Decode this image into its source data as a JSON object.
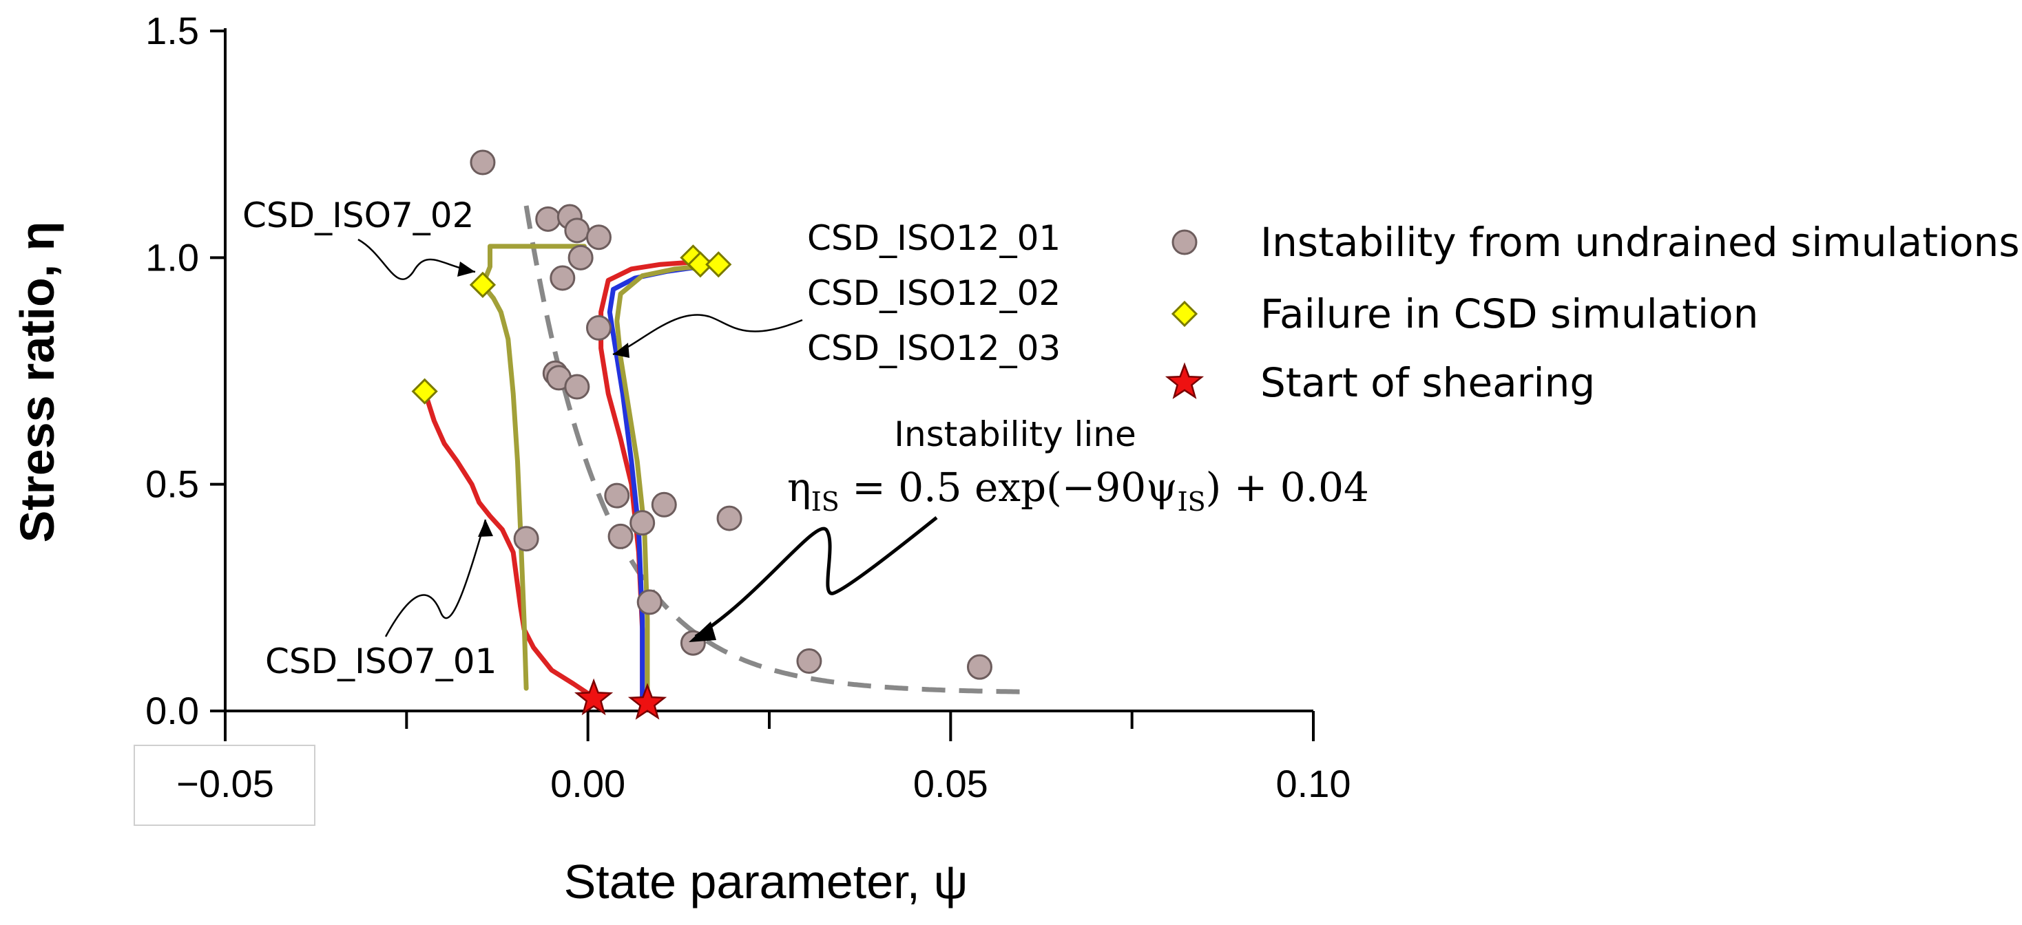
{
  "chart_data": {
    "type": "scatter",
    "xlabel": "State parameter, ψ",
    "ylabel": "Stress ratio, η",
    "xlim": [
      -0.05,
      0.1
    ],
    "ylim": [
      0.0,
      1.5
    ],
    "x_major_ticks": [
      -0.05,
      0.0,
      0.05,
      0.1
    ],
    "x_tick_labels": [
      "−0.05",
      "0.00",
      "0.05",
      "0.10"
    ],
    "x_minor_ticks": [
      -0.025,
      0.025,
      0.075
    ],
    "y_ticks": [
      0.0,
      0.5,
      1.0,
      1.5
    ],
    "y_tick_labels": [
      "0.0",
      "0.5",
      "1.0",
      "1.5"
    ],
    "legend_position": "right",
    "legend": [
      {
        "label": "Instability from undrained simulations",
        "marker": "circle",
        "color": "#bba6a6"
      },
      {
        "label": "Failure in CSD simulation",
        "marker": "diamond",
        "color": "#ffff00"
      },
      {
        "label": "Start of shearing",
        "marker": "star",
        "color": "#dd0000"
      }
    ],
    "instability_points": [
      [
        -0.0145,
        1.21
      ],
      [
        -0.0055,
        1.085
      ],
      [
        -0.0025,
        1.09
      ],
      [
        -0.0015,
        1.06
      ],
      [
        0.0015,
        1.045
      ],
      [
        -0.001,
        1.0
      ],
      [
        -0.0035,
        0.955
      ],
      [
        0.0015,
        0.845
      ],
      [
        -0.0045,
        0.745
      ],
      [
        -0.004,
        0.735
      ],
      [
        -0.0015,
        0.715
      ],
      [
        0.004,
        0.475
      ],
      [
        0.0105,
        0.455
      ],
      [
        0.0195,
        0.425
      ],
      [
        0.0075,
        0.415
      ],
      [
        0.0045,
        0.385
      ],
      [
        -0.0085,
        0.38
      ],
      [
        0.0085,
        0.24
      ],
      [
        0.0145,
        0.15
      ],
      [
        0.0305,
        0.11
      ],
      [
        0.054,
        0.097
      ]
    ],
    "failure_points": [
      [
        -0.0225,
        0.705
      ],
      [
        -0.0145,
        0.94
      ],
      [
        0.0145,
        1.0
      ],
      [
        0.0155,
        0.985
      ],
      [
        0.018,
        0.985
      ]
    ],
    "start_points": [
      [
        0.0008,
        0.027
      ],
      [
        0.0082,
        0.017
      ]
    ],
    "instability_line": {
      "equation": "η_IS = 0.5 exp(−90ψ_IS) + 0.04",
      "label": "Instability line",
      "equation_main": "η",
      "equation_sub1": "IS",
      "equation_mid": " = 0.5 exp(−90ψ",
      "equation_sub2": "IS",
      "equation_end": ") + 0.04",
      "x_start": -0.0085,
      "x_end": 0.06,
      "color": "#888888"
    },
    "series": [
      {
        "name": "CSD_ISO7_01",
        "color": "#dd2222",
        "points": [
          [
            0.0008,
            0.03
          ],
          [
            -0.002,
            0.06
          ],
          [
            -0.005,
            0.09
          ],
          [
            -0.0075,
            0.14
          ],
          [
            -0.0088,
            0.18
          ],
          [
            -0.0093,
            0.23
          ],
          [
            -0.0098,
            0.29
          ],
          [
            -0.0103,
            0.35
          ],
          [
            -0.0118,
            0.4
          ],
          [
            -0.0135,
            0.43
          ],
          [
            -0.015,
            0.46
          ],
          [
            -0.016,
            0.5
          ],
          [
            -0.018,
            0.55
          ],
          [
            -0.0198,
            0.59
          ],
          [
            -0.0212,
            0.64
          ],
          [
            -0.0225,
            0.705
          ]
        ]
      },
      {
        "name": "CSD_ISO7_02",
        "color": "#a2a038",
        "points": [
          [
            -0.0085,
            0.05
          ],
          [
            -0.0088,
            0.2
          ],
          [
            -0.0093,
            0.4
          ],
          [
            -0.0097,
            0.55
          ],
          [
            -0.0103,
            0.7
          ],
          [
            -0.011,
            0.82
          ],
          [
            -0.012,
            0.88
          ],
          [
            -0.013,
            0.91
          ],
          [
            -0.0145,
            0.94
          ],
          [
            -0.0135,
            0.98
          ],
          [
            -0.0135,
            1.025
          ],
          [
            -0.0005,
            1.025
          ]
        ]
      },
      {
        "name": "CSD_ISO12_01",
        "color": "#dd2222",
        "points": [
          [
            0.0075,
            0.02
          ],
          [
            0.0075,
            0.18
          ],
          [
            0.007,
            0.35
          ],
          [
            0.006,
            0.5
          ],
          [
            0.0045,
            0.6
          ],
          [
            0.0028,
            0.7
          ],
          [
            0.0018,
            0.8
          ],
          [
            0.0018,
            0.88
          ],
          [
            0.0028,
            0.95
          ],
          [
            0.006,
            0.975
          ],
          [
            0.01,
            0.985
          ],
          [
            0.0145,
            0.99
          ],
          [
            0.019,
            0.99
          ]
        ]
      },
      {
        "name": "CSD_ISO12_02",
        "color": "#2233dd",
        "points": [
          [
            0.0075,
            0.02
          ],
          [
            0.0075,
            0.2
          ],
          [
            0.007,
            0.4
          ],
          [
            0.006,
            0.55
          ],
          [
            0.0048,
            0.7
          ],
          [
            0.0038,
            0.8
          ],
          [
            0.003,
            0.88
          ],
          [
            0.0035,
            0.93
          ],
          [
            0.0065,
            0.955
          ],
          [
            0.011,
            0.97
          ],
          [
            0.0155,
            0.98
          ]
        ]
      },
      {
        "name": "CSD_ISO12_03",
        "color": "#a2a038",
        "points": [
          [
            0.0082,
            0.02
          ],
          [
            0.0082,
            0.2
          ],
          [
            0.0078,
            0.4
          ],
          [
            0.0068,
            0.55
          ],
          [
            0.0055,
            0.68
          ],
          [
            0.0045,
            0.78
          ],
          [
            0.004,
            0.86
          ],
          [
            0.0045,
            0.92
          ],
          [
            0.0075,
            0.96
          ],
          [
            0.012,
            0.975
          ],
          [
            0.018,
            0.985
          ]
        ]
      }
    ],
    "annotations": [
      {
        "text": "CSD_ISO7_02",
        "target": "CSD_ISO7_02"
      },
      {
        "text": "CSD_ISO12_01",
        "target": "CSD_ISO12_01"
      },
      {
        "text": "CSD_ISO12_02",
        "target": "CSD_ISO12_02"
      },
      {
        "text": "CSD_ISO12_03",
        "target": "CSD_ISO12_03"
      },
      {
        "text": "CSD_ISO7_01",
        "target": "CSD_ISO7_01"
      }
    ]
  }
}
